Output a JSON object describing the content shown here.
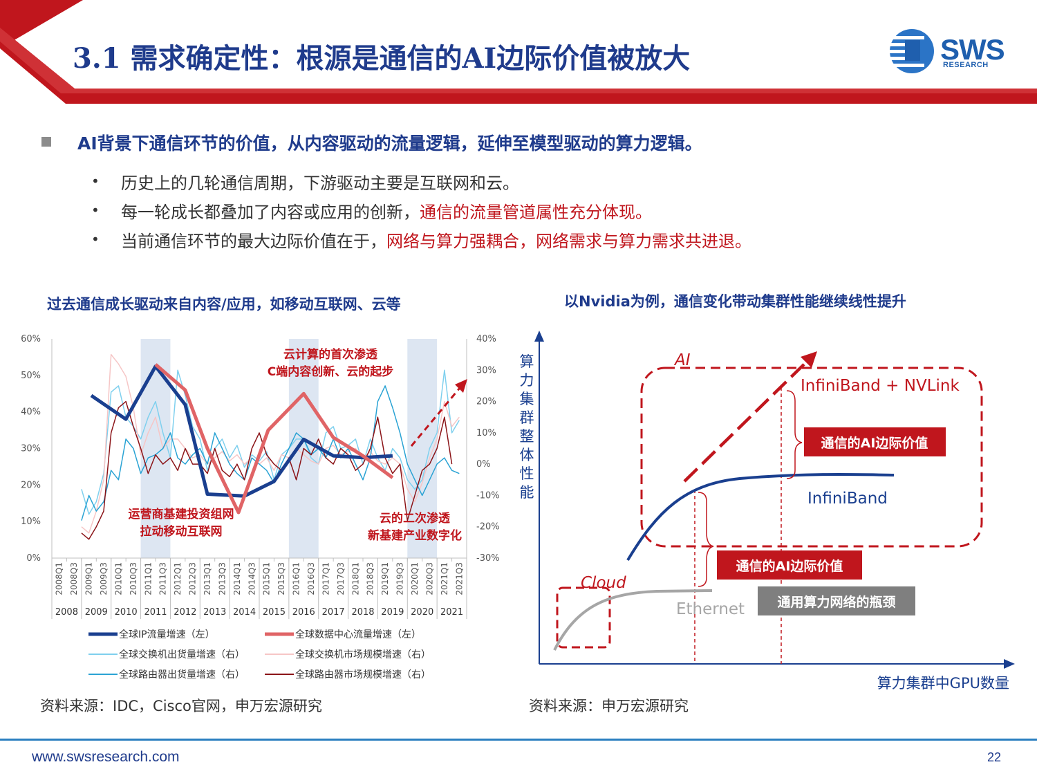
{
  "header": {
    "title": "3.1 需求确定性：根源是通信的AI边际价值被放大",
    "logo_text": "SWS",
    "logo_sub": "RESEARCH",
    "accent": "#c0161d",
    "title_color": "#1f3b8c"
  },
  "main_bullet": "AI背景下通信环节的价值，从内容驱动的流量逻辑，延伸至模型驱动的算力逻辑。",
  "sub_bullets": [
    {
      "text": "历史上的几轮通信周期，下游驱动主要是互联网和云。",
      "highlight": ""
    },
    {
      "text": "每一轮成长都叠加了内容或应用的创新，",
      "highlight": "通信的流量管道属性充分体现。"
    },
    {
      "text": "当前通信环节的最大边际价值在于，",
      "highlight": "网络与算力强耦合，网络需求与算力需求共进退。"
    }
  ],
  "left_chart": {
    "title": "过去通信成长驱动来自内容/应用，如移动互联网、云等",
    "source": "资料来源：IDC，Cisco官网，申万宏源研究",
    "annotations": {
      "cloud1_line1": "云计算的首次渗透",
      "cloud1_line2": "C端内容创新、云的起步",
      "mobile_line1": "运营商基建投资组网",
      "mobile_line2": "拉动移动互联网",
      "cloud2_line1": "云的二次渗透",
      "cloud2_line2": "新基建产业数字化"
    },
    "chart_data": {
      "type": "line",
      "x_quarters": [
        "2008Q1",
        "2008Q3",
        "2009Q1",
        "2009Q3",
        "2010Q1",
        "2010Q3",
        "2011Q1",
        "2011Q3",
        "2012Q1",
        "2012Q3",
        "2013Q1",
        "2013Q3",
        "2014Q1",
        "2014Q3",
        "2015Q1",
        "2015Q3",
        "2016Q1",
        "2016Q3",
        "2017Q1",
        "2017Q3",
        "2018Q1",
        "2018Q3",
        "2019Q1",
        "2019Q3",
        "2020Q1",
        "2020Q3",
        "2021Q1",
        "2021Q3"
      ],
      "x_years": [
        "2008",
        "2009",
        "2010",
        "2011",
        "2012",
        "2013",
        "2014",
        "2015",
        "2016",
        "2017",
        "2018",
        "2019",
        "2020",
        "2021"
      ],
      "y_left_ticks": [
        "0%",
        "10%",
        "20%",
        "30%",
        "40%",
        "50%",
        "60%"
      ],
      "y_right_ticks": [
        "-30%",
        "-20%",
        "-10%",
        "0%",
        "10%",
        "20%",
        "30%",
        "40%"
      ],
      "ylim_left": [
        0,
        60
      ],
      "ylim_right": [
        -30,
        40
      ],
      "shaded_year_ranges": [
        [
          2011,
          2012
        ],
        [
          2016,
          2017
        ],
        [
          2020,
          2021
        ]
      ],
      "series": [
        {
          "name": "全球IP流量增速（左）",
          "axis": "left",
          "color": "#1a3f8f",
          "width": 5,
          "points": [
            [
              2009.33,
              44.5
            ],
            [
              2010.5,
              38
            ],
            [
              2011.5,
              52.5
            ],
            [
              2012.5,
              42
            ],
            [
              2013.25,
              17.5
            ],
            [
              2014.5,
              17
            ],
            [
              2015.5,
              21
            ],
            [
              2016.5,
              32.5
            ],
            [
              2017.5,
              28
            ],
            [
              2018.5,
              27.5
            ],
            [
              2019.5,
              28
            ]
          ]
        },
        {
          "name": "全球数据中心流量增速（左）",
          "axis": "left",
          "color": "#e06466",
          "width": 5,
          "points": [
            [
              2011.5,
              53
            ],
            [
              2012.5,
              46
            ],
            [
              2013.25,
              30
            ],
            [
              2014.3,
              12.5
            ],
            [
              2015.3,
              35
            ],
            [
              2016.5,
              45
            ],
            [
              2017.5,
              33
            ],
            [
              2018.5,
              28
            ],
            [
              2019.5,
              22
            ]
          ]
        },
        {
          "name": "全球交换机出货量增速（右）",
          "axis": "right",
          "color": "#7fd0ee",
          "width": 1.5,
          "points": [
            [
              2009.0,
              -8
            ],
            [
              2009.25,
              -16
            ],
            [
              2009.5,
              -12
            ],
            [
              2009.75,
              -3
            ],
            [
              2010.0,
              23
            ],
            [
              2010.25,
              25
            ],
            [
              2010.5,
              15
            ],
            [
              2010.75,
              12
            ],
            [
              2011.0,
              8
            ],
            [
              2011.25,
              15
            ],
            [
              2011.5,
              20
            ],
            [
              2011.75,
              10
            ],
            [
              2012.0,
              2
            ],
            [
              2012.25,
              30
            ],
            [
              2012.5,
              22
            ],
            [
              2012.75,
              12
            ],
            [
              2013.0,
              8
            ],
            [
              2013.25,
              -2
            ],
            [
              2013.5,
              5
            ],
            [
              2013.75,
              8
            ],
            [
              2014.0,
              2
            ],
            [
              2014.25,
              6
            ],
            [
              2014.5,
              -1
            ],
            [
              2014.75,
              3
            ],
            [
              2015.0,
              1
            ],
            [
              2015.25,
              4
            ],
            [
              2015.5,
              -5
            ],
            [
              2015.75,
              3
            ],
            [
              2016.0,
              5
            ],
            [
              2016.25,
              8
            ],
            [
              2016.5,
              8
            ],
            [
              2016.75,
              2
            ],
            [
              2017.0,
              0
            ],
            [
              2017.25,
              10
            ],
            [
              2017.5,
              12
            ],
            [
              2017.75,
              5
            ],
            [
              2018.0,
              6
            ],
            [
              2018.25,
              8
            ],
            [
              2018.5,
              0
            ],
            [
              2018.75,
              8
            ],
            [
              2019.0,
              2
            ],
            [
              2019.25,
              -2
            ],
            [
              2019.5,
              5
            ],
            [
              2019.75,
              2
            ],
            [
              2020.0,
              -5
            ],
            [
              2020.25,
              -8
            ],
            [
              2020.5,
              -5
            ],
            [
              2020.75,
              5
            ],
            [
              2021.0,
              10
            ],
            [
              2021.25,
              30
            ],
            [
              2021.5,
              10
            ],
            [
              2021.75,
              14
            ]
          ]
        },
        {
          "name": "全球交换机市场规模增速（右）",
          "axis": "right",
          "color": "#f6c6c6",
          "width": 1.5,
          "points": [
            [
              2009.0,
              -20
            ],
            [
              2009.25,
              -22
            ],
            [
              2009.5,
              -15
            ],
            [
              2009.75,
              -5
            ],
            [
              2010.0,
              35
            ],
            [
              2010.25,
              32
            ],
            [
              2010.5,
              28
            ],
            [
              2010.75,
              18
            ],
            [
              2011.0,
              3
            ],
            [
              2011.25,
              10
            ],
            [
              2011.5,
              15
            ],
            [
              2011.75,
              5
            ],
            [
              2012.0,
              8
            ],
            [
              2012.25,
              8
            ],
            [
              2012.5,
              5
            ],
            [
              2012.75,
              2
            ],
            [
              2013.0,
              3
            ],
            [
              2013.25,
              0
            ],
            [
              2013.5,
              2
            ],
            [
              2013.75,
              4
            ],
            [
              2014.0,
              1
            ],
            [
              2014.25,
              3
            ],
            [
              2014.5,
              0
            ],
            [
              2014.75,
              2
            ],
            [
              2015.0,
              0
            ],
            [
              2015.25,
              2
            ],
            [
              2015.5,
              -2
            ],
            [
              2015.75,
              3
            ],
            [
              2016.0,
              2
            ],
            [
              2016.25,
              5
            ],
            [
              2016.5,
              3
            ],
            [
              2016.75,
              1
            ],
            [
              2017.0,
              0
            ],
            [
              2017.25,
              5
            ],
            [
              2017.5,
              6
            ],
            [
              2017.75,
              3
            ],
            [
              2018.0,
              4
            ],
            [
              2018.25,
              5
            ],
            [
              2018.5,
              2
            ],
            [
              2018.75,
              4
            ],
            [
              2019.0,
              1
            ],
            [
              2019.25,
              0
            ],
            [
              2019.5,
              2
            ],
            [
              2019.75,
              0
            ],
            [
              2020.0,
              -8
            ],
            [
              2020.25,
              -12
            ],
            [
              2020.5,
              -6
            ],
            [
              2020.75,
              2
            ],
            [
              2021.0,
              8
            ],
            [
              2021.25,
              20
            ],
            [
              2021.5,
              12
            ],
            [
              2021.75,
              15
            ]
          ]
        },
        {
          "name": "全球路由器出货量增速（右）",
          "axis": "right",
          "color": "#2aa3d4",
          "width": 1.5,
          "points": [
            [
              2009.0,
              -18
            ],
            [
              2009.25,
              -10
            ],
            [
              2009.5,
              -15
            ],
            [
              2009.75,
              -12
            ],
            [
              2010.0,
              -2
            ],
            [
              2010.25,
              -5
            ],
            [
              2010.5,
              8
            ],
            [
              2010.75,
              5
            ],
            [
              2011.0,
              -3
            ],
            [
              2011.25,
              2
            ],
            [
              2011.5,
              3
            ],
            [
              2011.75,
              5
            ],
            [
              2012.0,
              10
            ],
            [
              2012.25,
              2
            ],
            [
              2012.5,
              0
            ],
            [
              2012.75,
              3
            ],
            [
              2013.0,
              5
            ],
            [
              2013.25,
              0
            ],
            [
              2013.5,
              10
            ],
            [
              2013.75,
              5
            ],
            [
              2014.0,
              0
            ],
            [
              2014.25,
              -3
            ],
            [
              2014.5,
              -5
            ],
            [
              2014.75,
              2
            ],
            [
              2015.0,
              0
            ],
            [
              2015.25,
              -2
            ],
            [
              2015.5,
              -6
            ],
            [
              2015.75,
              0
            ],
            [
              2016.0,
              5
            ],
            [
              2016.25,
              10
            ],
            [
              2016.5,
              8
            ],
            [
              2016.75,
              3
            ],
            [
              2017.0,
              5
            ],
            [
              2017.25,
              2
            ],
            [
              2017.5,
              8
            ],
            [
              2017.75,
              2
            ],
            [
              2018.0,
              5
            ],
            [
              2018.25,
              0
            ],
            [
              2018.5,
              -5
            ],
            [
              2018.75,
              2
            ],
            [
              2019.0,
              20
            ],
            [
              2019.25,
              25
            ],
            [
              2019.5,
              18
            ],
            [
              2019.75,
              10
            ],
            [
              2020.0,
              0
            ],
            [
              2020.25,
              -5
            ],
            [
              2020.5,
              -10
            ],
            [
              2020.75,
              -5
            ],
            [
              2021.0,
              0
            ],
            [
              2021.25,
              2
            ],
            [
              2021.5,
              -2
            ],
            [
              2021.75,
              -3
            ]
          ]
        },
        {
          "name": "全球路由器市场规模增速（右）",
          "axis": "right",
          "color": "#8b1418",
          "width": 1.5,
          "points": [
            [
              2009.0,
              -22
            ],
            [
              2009.25,
              -24
            ],
            [
              2009.5,
              -20
            ],
            [
              2009.75,
              -15
            ],
            [
              2010.0,
              10
            ],
            [
              2010.25,
              18
            ],
            [
              2010.5,
              20
            ],
            [
              2010.75,
              12
            ],
            [
              2011.0,
              5
            ],
            [
              2011.25,
              -3
            ],
            [
              2011.5,
              3
            ],
            [
              2011.75,
              0
            ],
            [
              2012.0,
              2
            ],
            [
              2012.25,
              -2
            ],
            [
              2012.5,
              5
            ],
            [
              2012.75,
              0
            ],
            [
              2013.0,
              0
            ],
            [
              2013.25,
              -3
            ],
            [
              2013.5,
              5
            ],
            [
              2013.75,
              -2
            ],
            [
              2014.0,
              -4
            ],
            [
              2014.25,
              0
            ],
            [
              2014.5,
              -5
            ],
            [
              2014.75,
              5
            ],
            [
              2015.0,
              10
            ],
            [
              2015.25,
              3
            ],
            [
              2015.5,
              0
            ],
            [
              2015.75,
              -2
            ],
            [
              2016.0,
              2
            ],
            [
              2016.25,
              -5
            ],
            [
              2016.5,
              5
            ],
            [
              2016.75,
              3
            ],
            [
              2017.0,
              8
            ],
            [
              2017.25,
              2
            ],
            [
              2017.5,
              0
            ],
            [
              2017.75,
              5
            ],
            [
              2018.0,
              3
            ],
            [
              2018.25,
              -2
            ],
            [
              2018.5,
              0
            ],
            [
              2018.75,
              5
            ],
            [
              2019.0,
              15
            ],
            [
              2019.25,
              2
            ],
            [
              2019.5,
              -3
            ],
            [
              2019.75,
              0
            ],
            [
              2020.0,
              -18
            ],
            [
              2020.25,
              -10
            ],
            [
              2020.5,
              -2
            ],
            [
              2020.75,
              0
            ],
            [
              2021.0,
              5
            ],
            [
              2021.25,
              15
            ],
            [
              2021.5,
              0
            ]
          ]
        }
      ]
    }
  },
  "right_chart": {
    "title": "以Nvidia为例，通信变化带动集群性能继续线性提升",
    "source": "资料来源：申万宏源研究",
    "y_label": "算力集群整体性能",
    "x_label": "算力集群中GPU数量",
    "label_ai": "AI",
    "label_infiniband_nvlink": "InfiniBand + NVLink",
    "label_infiniband": "InfiniBand",
    "label_cloud": "Cloud",
    "label_ethernet": "Ethernet",
    "box1": "通信的AI边际价值",
    "box2": "通信的AI边际价值",
    "box3": "通用算力网络的瓶颈",
    "colors": {
      "red": "#c0161d",
      "blue": "#1a3f8f",
      "gray": "#a6a6a6",
      "dark_gray": "#7f7f7f"
    }
  },
  "footer": {
    "url": "www.swsresearch.com",
    "page": "22"
  }
}
